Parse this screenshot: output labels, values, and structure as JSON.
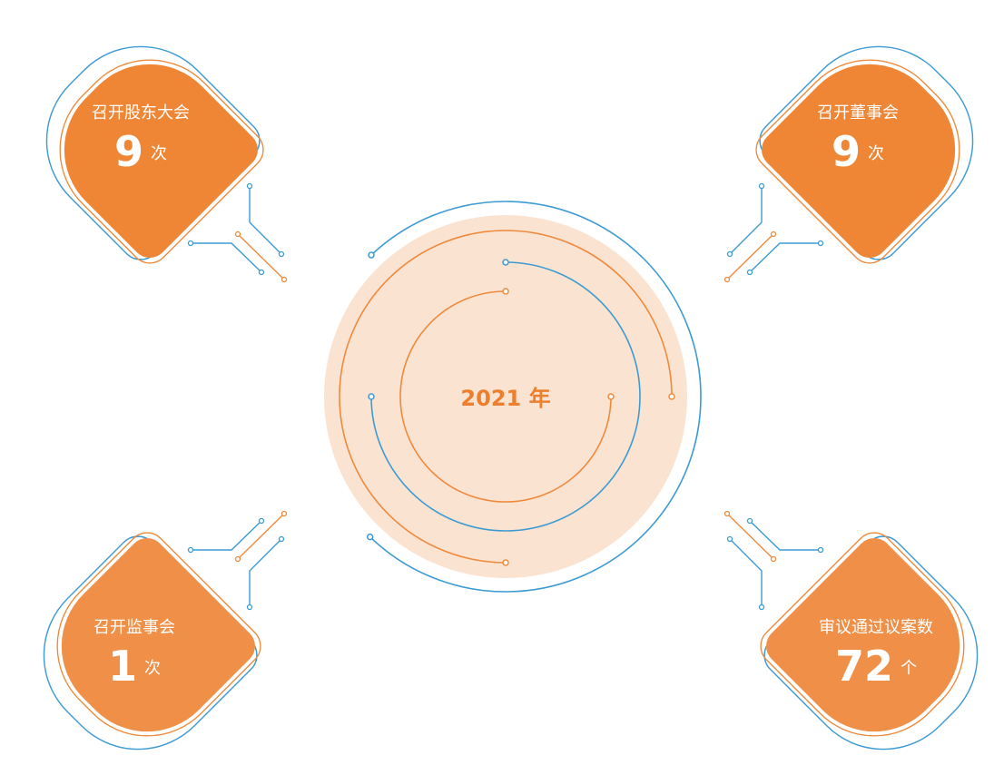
{
  "center": {
    "title": "2021 年"
  },
  "cards": [
    {
      "label": "召开股东大会",
      "value": 9,
      "unit": "次"
    },
    {
      "label": "召开董事会",
      "value": 9,
      "unit": "次"
    },
    {
      "label": "召开监事会",
      "value": 1,
      "unit": "次"
    },
    {
      "label": "审议通过议案数",
      "value": 72,
      "unit": "个"
    }
  ]
}
